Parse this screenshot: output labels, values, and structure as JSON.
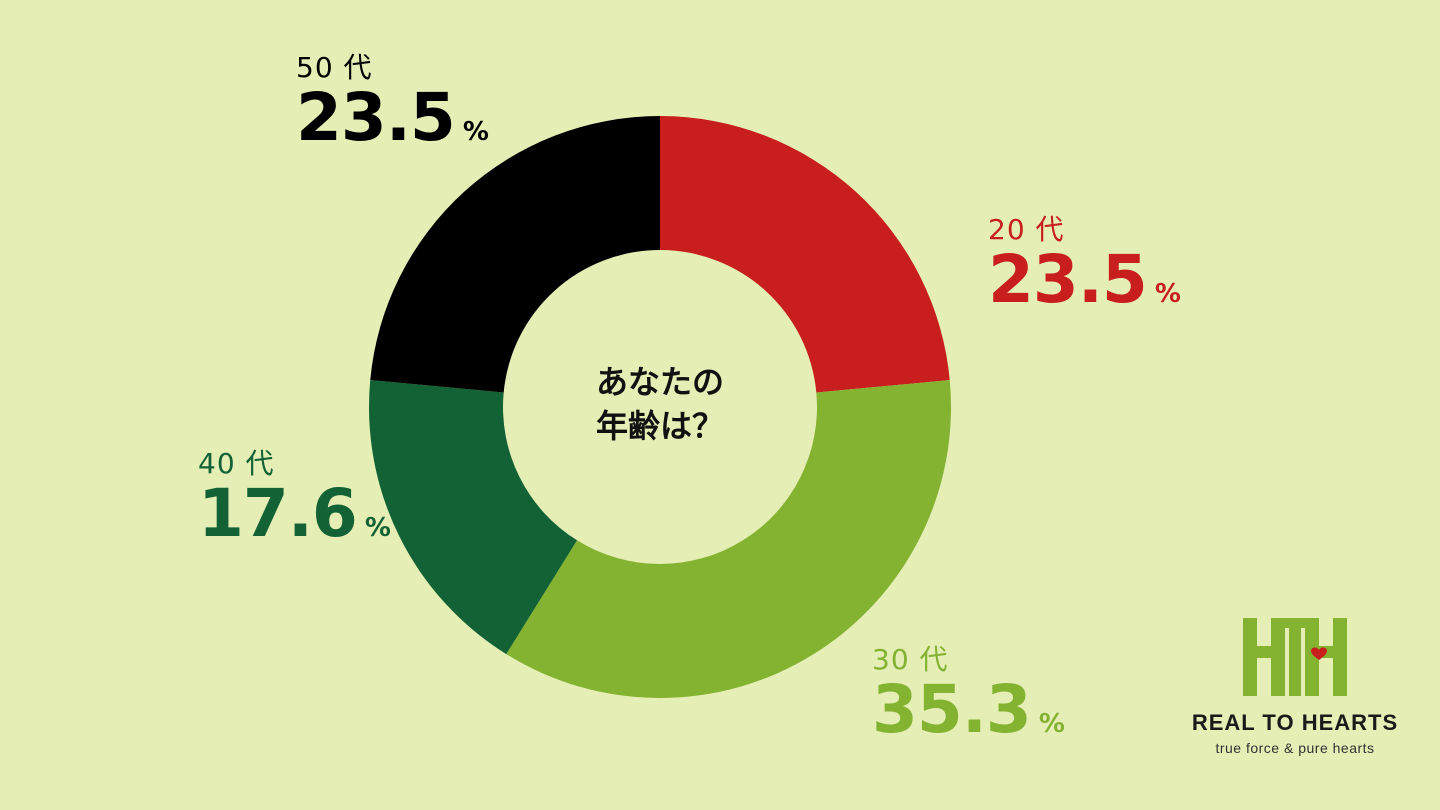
{
  "chart_data": {
    "type": "pie",
    "title": "あなたの年齢は？",
    "title_lines": [
      "あなたの",
      "年齢は？"
    ],
    "start": "top, clockwise",
    "slices": [
      {
        "category": "20 代",
        "value": 23.5,
        "value_label": "23.5",
        "unit": "%",
        "color": "#c81e1e"
      },
      {
        "category": "30 代",
        "value": 35.3,
        "value_label": "35.3",
        "unit": "%",
        "color": "#84b231"
      },
      {
        "category": "40 代",
        "value": 17.6,
        "value_label": "17.6",
        "unit": "%",
        "color": "#136235"
      },
      {
        "category": "50 代",
        "value": 23.5,
        "value_label": "23.5",
        "unit": "%",
        "color": "#000000"
      }
    ]
  },
  "logo": {
    "name": "REAL TO HEARTS",
    "tagline": "true force & pure hearts",
    "mark_color": "#84b231",
    "heart_color": "#c81e1e"
  },
  "colors": {
    "background": "#e4eeb5"
  }
}
